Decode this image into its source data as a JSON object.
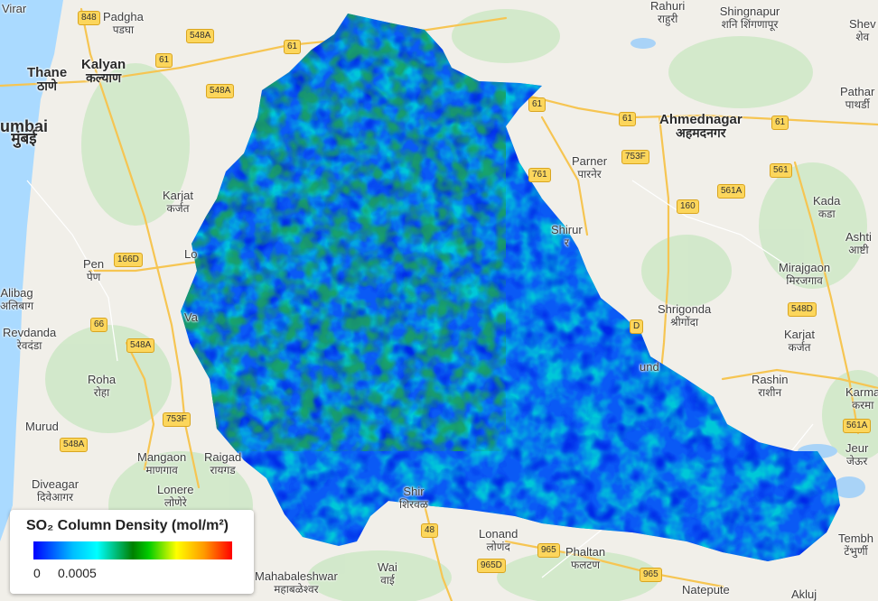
{
  "map": {
    "places": [
      {
        "id": "virar",
        "name": "Virar",
        "dev": ""
      },
      {
        "id": "padgha",
        "name": "Padgha",
        "dev": "पडघा"
      },
      {
        "id": "thane",
        "name": "Thane",
        "dev": "ठाणे"
      },
      {
        "id": "kalyan",
        "name": "Kalyan",
        "dev": "कल्याण"
      },
      {
        "id": "mumbai",
        "name": "umbai",
        "dev": "मुंबई"
      },
      {
        "id": "karjat",
        "name": "Karjat",
        "dev": "कर्जत"
      },
      {
        "id": "pen",
        "name": "Pen",
        "dev": "पेण"
      },
      {
        "id": "alibag",
        "name": "Alibag",
        "dev": "अलिबाग"
      },
      {
        "id": "revdanda",
        "name": "Revdanda",
        "dev": "रेवदंडा"
      },
      {
        "id": "roha",
        "name": "Roha",
        "dev": "रोहा"
      },
      {
        "id": "murud",
        "name": "Murud",
        "dev": "मुरुड"
      },
      {
        "id": "mangaon",
        "name": "Mangaon",
        "dev": "माणगाव"
      },
      {
        "id": "raigad",
        "name": "Raigad",
        "dev": "रायगड"
      },
      {
        "id": "lonere",
        "name": "Lonere",
        "dev": "लोणेरे"
      },
      {
        "id": "diveagar",
        "name": "Diveagar",
        "dev": "दिवेआगर"
      },
      {
        "id": "mahabaleshwar",
        "name": "Mahabaleshwar",
        "dev": "महाबळेश्वर"
      },
      {
        "id": "wai",
        "name": "Wai",
        "dev": "वाई"
      },
      {
        "id": "lonand",
        "name": "Lonand",
        "dev": "लोणंद"
      },
      {
        "id": "phaltan",
        "name": "Phaltan",
        "dev": "फलटण"
      },
      {
        "id": "natepute",
        "name": "Natepute",
        "dev": "नातेपुते"
      },
      {
        "id": "akluj",
        "name": "Akluj",
        "dev": ""
      },
      {
        "id": "rahuri",
        "name": "Rahuri",
        "dev": "राहुरी"
      },
      {
        "id": "shingnapur",
        "name": "Shingnapur",
        "dev": "शनि शिंगणापूर"
      },
      {
        "id": "shevgaon",
        "name": "Shev",
        "dev": "शेव"
      },
      {
        "id": "ahmednagar",
        "name": "Ahmednagar",
        "dev": "अहमदनगर"
      },
      {
        "id": "pathardi",
        "name": "Pathar",
        "dev": "पाथर्डी"
      },
      {
        "id": "parner",
        "name": "Parner",
        "dev": "पारनेर"
      },
      {
        "id": "shirur",
        "name": "Shirur",
        "dev": "र"
      },
      {
        "id": "kada",
        "name": "Kada",
        "dev": "कडा"
      },
      {
        "id": "ashti",
        "name": "Ashti",
        "dev": "आष्टी"
      },
      {
        "id": "mirajgaon",
        "name": "Mirajgaon",
        "dev": "मिरजगाव"
      },
      {
        "id": "shrigonda",
        "name": "Shrigonda",
        "dev": "श्रीगोंदा"
      },
      {
        "id": "karjat2",
        "name": "Karjat",
        "dev": "कर्जत"
      },
      {
        "id": "rashin",
        "name": "Rashin",
        "dev": "राशीन"
      },
      {
        "id": "karmala",
        "name": "Karma",
        "dev": "करमा"
      },
      {
        "id": "jeur",
        "name": "Jeur",
        "dev": "जेऊर"
      },
      {
        "id": "tembhurni",
        "name": "Tembh",
        "dev": "टेंभुर्णी"
      },
      {
        "id": "shirwal",
        "name": "Shir",
        "dev": "शिरवळ"
      },
      {
        "id": "daund",
        "name": "und",
        "dev": ""
      },
      {
        "id": "vadgaon",
        "name": "Va",
        "dev": ""
      },
      {
        "id": "lonavala",
        "name": "Lo",
        "dev": ""
      }
    ],
    "shields": [
      {
        "id": "848",
        "label": "848"
      },
      {
        "id": "548a-1",
        "label": "548A"
      },
      {
        "id": "61-1",
        "label": "61"
      },
      {
        "id": "61-2",
        "label": "61"
      },
      {
        "id": "548a-2",
        "label": "548A"
      },
      {
        "id": "166d",
        "label": "166D"
      },
      {
        "id": "66",
        "label": "66"
      },
      {
        "id": "548a-3",
        "label": "548A"
      },
      {
        "id": "753f-1",
        "label": "753F"
      },
      {
        "id": "548a-4",
        "label": "548A"
      },
      {
        "id": "61-3",
        "label": "61"
      },
      {
        "id": "61-4",
        "label": "61"
      },
      {
        "id": "61-5",
        "label": "61"
      },
      {
        "id": "761",
        "label": "761"
      },
      {
        "id": "753f-2",
        "label": "753F"
      },
      {
        "id": "561a-1",
        "label": "561A"
      },
      {
        "id": "561",
        "label": "561"
      },
      {
        "id": "160",
        "label": "160"
      },
      {
        "id": "548d",
        "label": "548D"
      },
      {
        "id": "561a-2",
        "label": "561A"
      },
      {
        "id": "48",
        "label": "48"
      },
      {
        "id": "965-1",
        "label": "965"
      },
      {
        "id": "965d",
        "label": "965D"
      },
      {
        "id": "965-2",
        "label": "965"
      },
      {
        "id": "d-partial",
        "label": "D"
      }
    ]
  },
  "legend": {
    "title": "SO₂ Column Density (mol/m²)",
    "min_label": "0",
    "max_label": "0.0005",
    "min_value": 0,
    "max_value": 0.0005,
    "colors": [
      "#0000ff",
      "#00bfff",
      "#00ffff",
      "#008000",
      "#00cc00",
      "#ffff00",
      "#ff9900",
      "#ff0000"
    ]
  }
}
